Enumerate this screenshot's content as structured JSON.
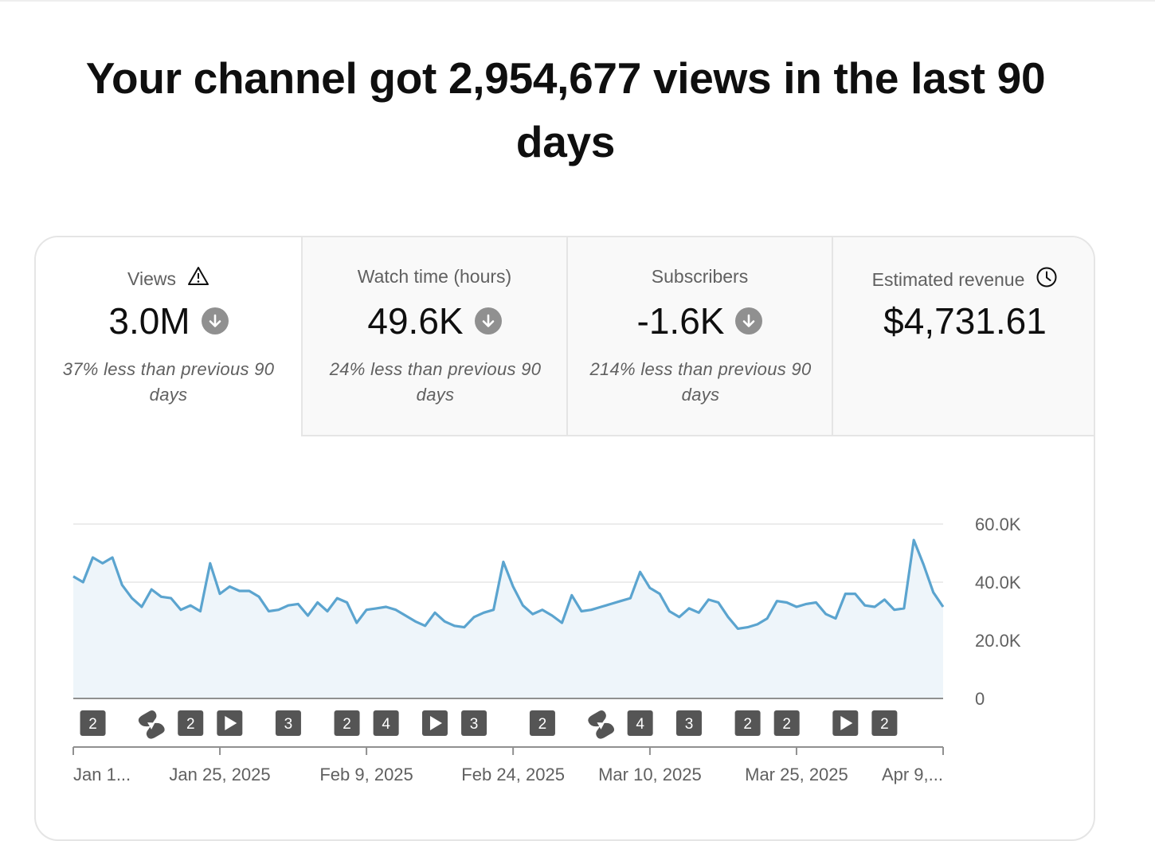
{
  "headline": "Your channel got 2,954,677 views in the last 90 days",
  "tabs": [
    {
      "label": "Views",
      "value": "3.0M",
      "comparison": "37% less than previous 90 days",
      "icon": "warning-icon",
      "trend": "down"
    },
    {
      "label": "Watch time (hours)",
      "value": "49.6K",
      "comparison": "24% less than previous 90 days",
      "trend": "down"
    },
    {
      "label": "Subscribers",
      "value": "-1.6K",
      "comparison": "214% less than previous 90 days",
      "trend": "down"
    },
    {
      "label": "Estimated revenue",
      "value": "$4,731.61",
      "icon": "clock-icon"
    }
  ],
  "colors": {
    "line": "#5ba4cf",
    "fill": "#eef5fa",
    "marker": "#555555",
    "grid": "#e5e5e5"
  },
  "chart_data": {
    "type": "area",
    "series": [
      {
        "values": [
          42000,
          40000,
          48500,
          46500,
          48500,
          39000,
          34500,
          31500,
          37500,
          35000,
          34500,
          30500,
          32000,
          30000,
          46500,
          36000,
          38500,
          37000,
          37000,
          35000,
          30000,
          30500,
          32000,
          32500,
          28500,
          33000,
          30000,
          34500,
          33000,
          26000,
          30500,
          31000,
          31500,
          30500,
          28500,
          26500,
          25000,
          29500,
          26500,
          25000,
          24500,
          28000,
          29500,
          30500,
          47000,
          38500,
          32000,
          29000,
          30500,
          28500,
          26000,
          35500,
          30000,
          30500,
          31500,
          32500,
          33500,
          34500,
          43500,
          38000,
          36000,
          30000,
          28000,
          31000,
          29500,
          34000,
          33000,
          28000,
          24000,
          24500,
          25500,
          27500,
          33500,
          33000,
          31500,
          32500,
          33000,
          29000,
          27500,
          36000,
          36000,
          32000,
          31500,
          34000,
          30500,
          31000,
          54500,
          46000,
          36500,
          31500
        ]
      }
    ],
    "x_tick_labels": [
      "Jan 1...",
      "Jan 25, 2025",
      "Feb 9, 2025",
      "Feb 24, 2025",
      "Mar 10, 2025",
      "Mar 25, 2025",
      "Apr 9,..."
    ],
    "y_tick_labels": [
      "60.0K",
      "40.0K",
      "20.0K",
      "0"
    ],
    "ylim": [
      0,
      60000
    ],
    "grid": true,
    "publish_markers": [
      {
        "type": "count",
        "label": "2",
        "day": 2
      },
      {
        "type": "shorts",
        "day": 8
      },
      {
        "type": "count",
        "label": "2",
        "day": 12
      },
      {
        "type": "video",
        "day": 16
      },
      {
        "type": "count",
        "label": "3",
        "day": 22
      },
      {
        "type": "count",
        "label": "2",
        "day": 28
      },
      {
        "type": "count",
        "label": "4",
        "day": 32
      },
      {
        "type": "video",
        "day": 37
      },
      {
        "type": "count",
        "label": "3",
        "day": 41
      },
      {
        "type": "count",
        "label": "2",
        "day": 48
      },
      {
        "type": "shorts",
        "day": 54
      },
      {
        "type": "count",
        "label": "4",
        "day": 58
      },
      {
        "type": "count",
        "label": "3",
        "day": 63
      },
      {
        "type": "count",
        "label": "2",
        "day": 69
      },
      {
        "type": "count",
        "label": "2",
        "day": 73
      },
      {
        "type": "video",
        "day": 79
      },
      {
        "type": "count",
        "label": "2",
        "day": 83
      }
    ]
  }
}
